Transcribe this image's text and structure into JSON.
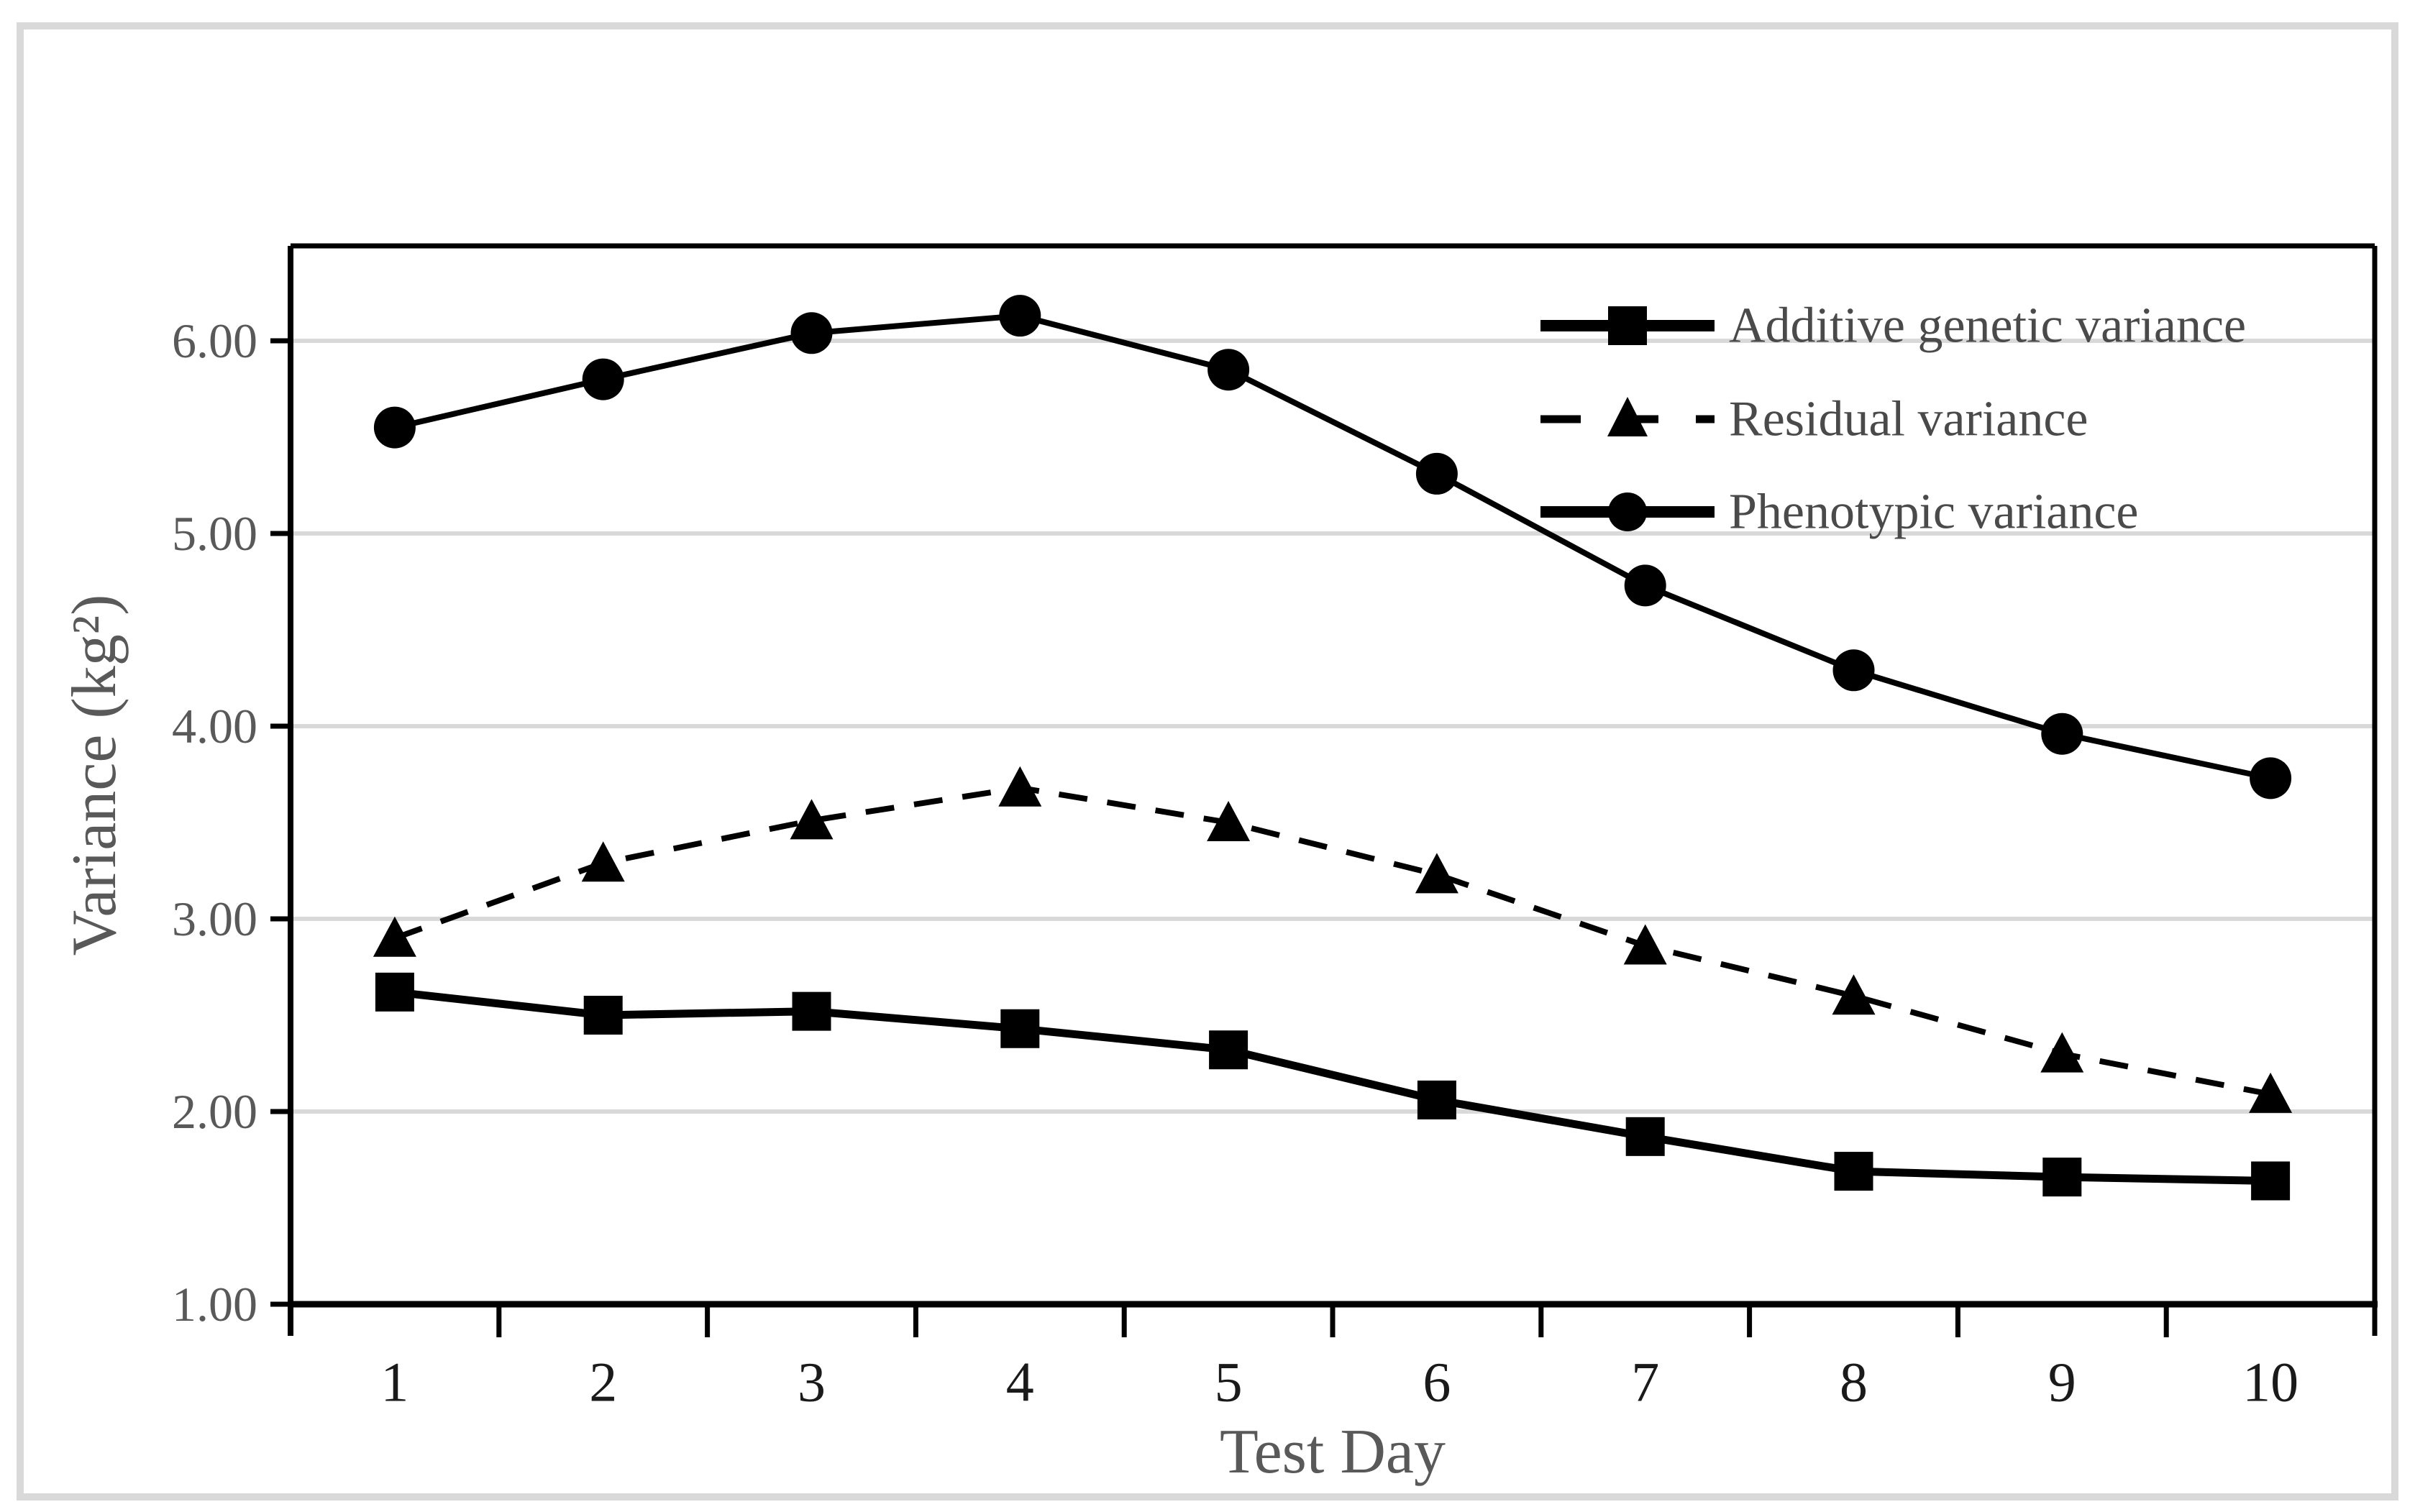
{
  "figure": {
    "background_color": "#ffffff",
    "frame_color": "#d9d9d9"
  },
  "colors": {
    "series_color": "#000000",
    "axis_color": "#000000",
    "gridline_color": "#d9d9d9",
    "x_tick_text": "#1a1a1a",
    "y_tick_text": "#595959",
    "axis_title_text": "#595959",
    "legend_text": "#4a4a4a"
  },
  "chart_data": {
    "type": "line",
    "title": "",
    "xlabel": "Test Day",
    "ylabel": "Variance (kg²)",
    "categories": [
      1,
      2,
      3,
      4,
      5,
      6,
      7,
      8,
      9,
      10
    ],
    "x_tick_labels": [
      "1",
      "2",
      "3",
      "4",
      "5",
      "6",
      "7",
      "8",
      "9",
      "10"
    ],
    "y_ticks": [
      "6.00",
      "5.00",
      "4.00",
      "3.00",
      "2.00",
      "1.00"
    ],
    "y_tick_values": [
      6.0,
      5.0,
      4.0,
      3.0,
      2.0,
      1.0
    ],
    "ylim": [
      1.0,
      6.5
    ],
    "grid": "horizontal",
    "legend_position": "top-right-inside",
    "series": [
      {
        "name": "Additive genetic variance",
        "marker": "square",
        "line_style": "solid",
        "color": "#000000",
        "values": [
          2.62,
          2.5,
          2.52,
          2.43,
          2.32,
          2.06,
          1.87,
          1.69,
          1.66,
          1.64
        ]
      },
      {
        "name": "Residual variance",
        "marker": "triangle",
        "line_style": "dashed",
        "color": "#000000",
        "values": [
          2.9,
          3.29,
          3.51,
          3.68,
          3.5,
          3.23,
          2.86,
          2.6,
          2.3,
          2.09
        ]
      },
      {
        "name": "Phenotypic variance",
        "marker": "circle",
        "line_style": "solid",
        "color": "#000000",
        "values": [
          5.55,
          5.8,
          6.04,
          6.13,
          5.85,
          5.31,
          4.73,
          4.29,
          3.96,
          3.73
        ]
      }
    ]
  }
}
